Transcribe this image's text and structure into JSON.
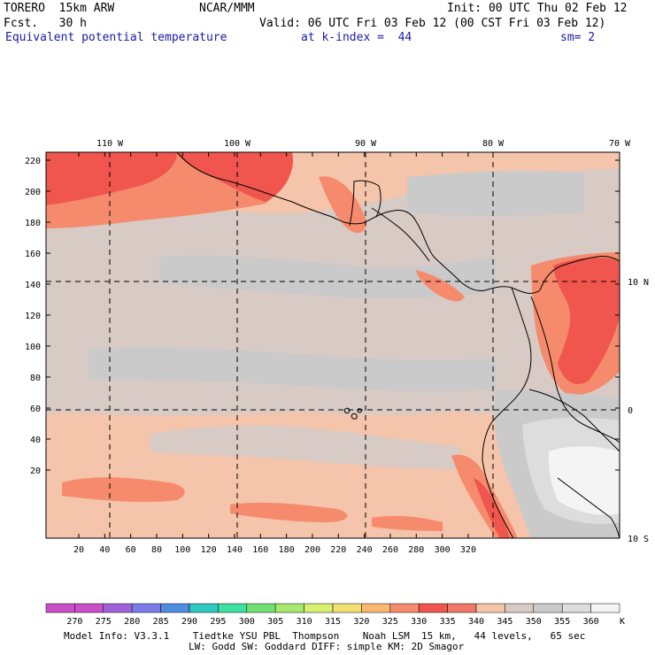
{
  "header": {
    "model": "TORERO  15km ARW",
    "org": "NCAR/MMM",
    "init": "Init: 00 UTC Thu 02 Feb 12",
    "fcst": "Fcst.   30 h",
    "valid": "Valid: 06 UTC Fri 03 Feb 12 (00 CST Fri 03 Feb 12)",
    "field": "Equivalent potential temperature",
    "level": "at k-index =  44",
    "smooth": "sm= 2"
  },
  "map": {
    "lon_labels": [
      "110 W",
      "100 W",
      "90 W",
      "80 W",
      "70 W"
    ],
    "lat_labels": [
      "10 N",
      "0",
      "10 S"
    ],
    "y_ticks": [
      "220",
      "200",
      "180",
      "160",
      "140",
      "120",
      "100",
      "80",
      "60",
      "40",
      "20"
    ],
    "x_ticks": [
      "20",
      "40",
      "60",
      "80",
      "100",
      "120",
      "140",
      "160",
      "180",
      "200",
      "220",
      "240",
      "260",
      "280",
      "300",
      "320"
    ],
    "colors": {
      "c325": "#f58b6c",
      "c330": "#f0564e",
      "c340": "#f4c4ab",
      "c345": "#d8cac5",
      "c350": "#cacaca",
      "c355": "#dddddd",
      "c360": "#f4f4f4"
    }
  },
  "colorbar": {
    "labels": [
      "270",
      "275",
      "280",
      "285",
      "290",
      "295",
      "300",
      "305",
      "310",
      "315",
      "320",
      "325",
      "330",
      "335",
      "340",
      "345",
      "350",
      "355",
      "360"
    ],
    "unit": "K",
    "colors": [
      "#c84fc8",
      "#a060d8",
      "#7c7ce6",
      "#4e8ee0",
      "#2ec8c0",
      "#3ee0a0",
      "#70e070",
      "#a8e870",
      "#d8f070",
      "#f0e070",
      "#f8b870",
      "#f58b6c",
      "#f0564e",
      "#f07868",
      "#f4c4ab",
      "#d8cac5",
      "#cacaca",
      "#dddddd",
      "#f4f4f4"
    ]
  },
  "footer": {
    "line1": "Model Info: V3.3.1    Tiedtke YSU PBL  Thompson    Noah LSM  15 km,   44 levels,   65 sec",
    "line2": "LW: Godd SW: Goddard DIFF: simple KM: 2D Smagor"
  }
}
